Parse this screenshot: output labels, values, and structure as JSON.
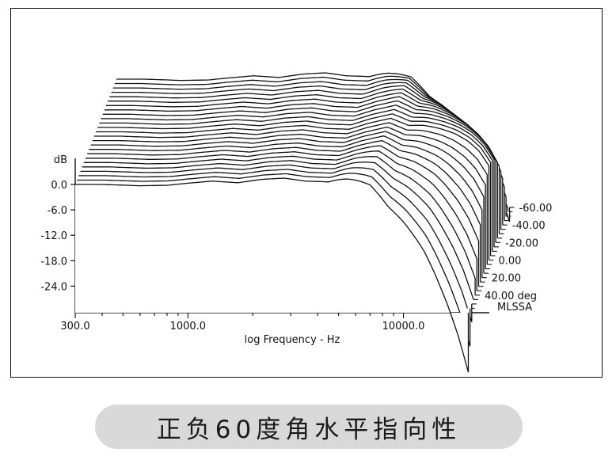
{
  "chart_data": {
    "type": "line",
    "chart_style": "waterfall",
    "x_scale": "log",
    "xlim": [
      300,
      23000
    ],
    "ylim": [
      -30,
      12
    ],
    "xlabel": "log Frequency - Hz",
    "x_ticks": [
      {
        "value": 300,
        "label": "300.0"
      },
      {
        "value": 1000,
        "label": "1000.0"
      },
      {
        "value": 10000,
        "label": "10000.0"
      }
    ],
    "ylabel": "dB",
    "y_ticks": [
      {
        "value": 0,
        "label": "0.0"
      },
      {
        "value": -6,
        "label": "-6.0"
      },
      {
        "value": -12,
        "label": "-12.0"
      },
      {
        "value": -18,
        "label": "-18.0"
      },
      {
        "value": -24,
        "label": "-24.0"
      }
    ],
    "z_label": "deg",
    "z_ticks": [
      {
        "value": -60,
        "label": "-60.00"
      },
      {
        "value": -40,
        "label": "-40.00"
      },
      {
        "value": -20,
        "label": "-20.00"
      },
      {
        "value": 0,
        "label": "0.00"
      },
      {
        "value": 20,
        "label": "20.00"
      },
      {
        "value": 40,
        "label": "40.00"
      }
    ],
    "angles_deg": [
      60,
      55,
      50,
      45,
      40,
      35,
      30,
      25,
      20,
      15,
      10,
      5,
      0,
      -5,
      -10,
      -15,
      -20,
      -25,
      -30,
      -35,
      -40,
      -45,
      -50,
      -55,
      -60
    ],
    "base_curve": {
      "freq": [
        300,
        400,
        600,
        800,
        1000,
        1300,
        1700,
        2200,
        2800,
        3500,
        4500,
        5500,
        7000,
        8500,
        10000,
        12000,
        14000,
        16000,
        18000,
        20000,
        22000
      ],
      "db": [
        0,
        0,
        -0.3,
        -0.2,
        0.3,
        0.8,
        0.4,
        1.2,
        1.5,
        0.8,
        0.6,
        2,
        3.2,
        1.5,
        1.8,
        1.6,
        1.2,
        0.4,
        -1,
        -3.5,
        -7
      ]
    },
    "hf_rolloff_note": "high frequency end rolls off further as |angle| increases"
  },
  "brand": "MLSSA",
  "caption": "正负60度角水平指向性"
}
